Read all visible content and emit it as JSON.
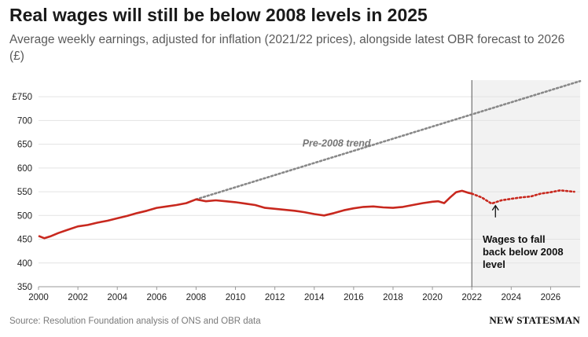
{
  "chart_data": {
    "type": "line",
    "title": "Real wages will still be below 2008 levels in 2025",
    "subtitle": "Average weekly earnings, adjusted for inflation (2021/22 prices), alongside latest OBR forecast to 2026 (£)",
    "xlabel": "",
    "ylabel": "",
    "xlim": [
      2000,
      2027.5
    ],
    "ylim": [
      350,
      785
    ],
    "x_ticks": [
      "2000",
      "2002",
      "2004",
      "2006",
      "2008",
      "2010",
      "2012",
      "2014",
      "2016",
      "2018",
      "2020",
      "2022",
      "2024",
      "2026"
    ],
    "y_ticks": [
      "£750",
      "700",
      "650",
      "600",
      "550",
      "500",
      "450",
      "400",
      "350"
    ],
    "y_tick_values": [
      750,
      700,
      650,
      600,
      550,
      500,
      450,
      400,
      350
    ],
    "x_tick_values": [
      2000,
      2002,
      2004,
      2006,
      2008,
      2010,
      2012,
      2014,
      2016,
      2018,
      2020,
      2022,
      2024,
      2026
    ],
    "grid": true,
    "forecast_region": [
      2022,
      2027.5
    ],
    "series": [
      {
        "style": "solid",
        "color": "#c8281e",
        "x": [
          2000,
          2000.3,
          2000.6,
          2001,
          2001.5,
          2002,
          2002.5,
          2003,
          2003.5,
          2004,
          2004.5,
          2005,
          2005.5,
          2006,
          2006.5,
          2007,
          2007.5,
          2008,
          2008.5,
          2009,
          2009.5,
          2010,
          2010.5,
          2011,
          2011.5,
          2012,
          2012.5,
          2013,
          2013.5,
          2014,
          2014.5,
          2015,
          2015.5,
          2016,
          2016.5,
          2017,
          2017.5,
          2018,
          2018.5,
          2019,
          2019.5,
          2020,
          2020.3,
          2020.6,
          2020.9,
          2021.2,
          2021.5,
          2021.8,
          2022
        ],
        "values": [
          457,
          452,
          456,
          463,
          470,
          477,
          480,
          485,
          489,
          494,
          499,
          505,
          510,
          516,
          519,
          522,
          526,
          534,
          530,
          532,
          530,
          528,
          525,
          522,
          516,
          514,
          512,
          510,
          507,
          503,
          500,
          505,
          511,
          515,
          518,
          519,
          517,
          516,
          518,
          522,
          526,
          529,
          530,
          526,
          538,
          549,
          552,
          548,
          546
        ]
      },
      {
        "name": "Pre-2008 trend",
        "style": "dotted",
        "color": "#888888",
        "x": [
          2008,
          2027.5
        ],
        "values": [
          534,
          783
        ]
      },
      {
        "style": "dotted",
        "color": "#c8281e",
        "x": [
          2022,
          2022.5,
          2023,
          2023.5,
          2024,
          2024.5,
          2025,
          2025.5,
          2026,
          2026.5,
          2027.2
        ],
        "values": [
          546,
          538,
          525,
          532,
          535,
          538,
          540,
          546,
          549,
          553,
          550
        ]
      }
    ],
    "annotations": {
      "trend_label": "Pre-2008 trend",
      "forecast_label": [
        "Wages to fall",
        "back below 2008",
        "level"
      ]
    }
  },
  "source": "Source: Resolution Foundation analysis of ONS and OBR data",
  "brand": "NEW STATESMAN"
}
